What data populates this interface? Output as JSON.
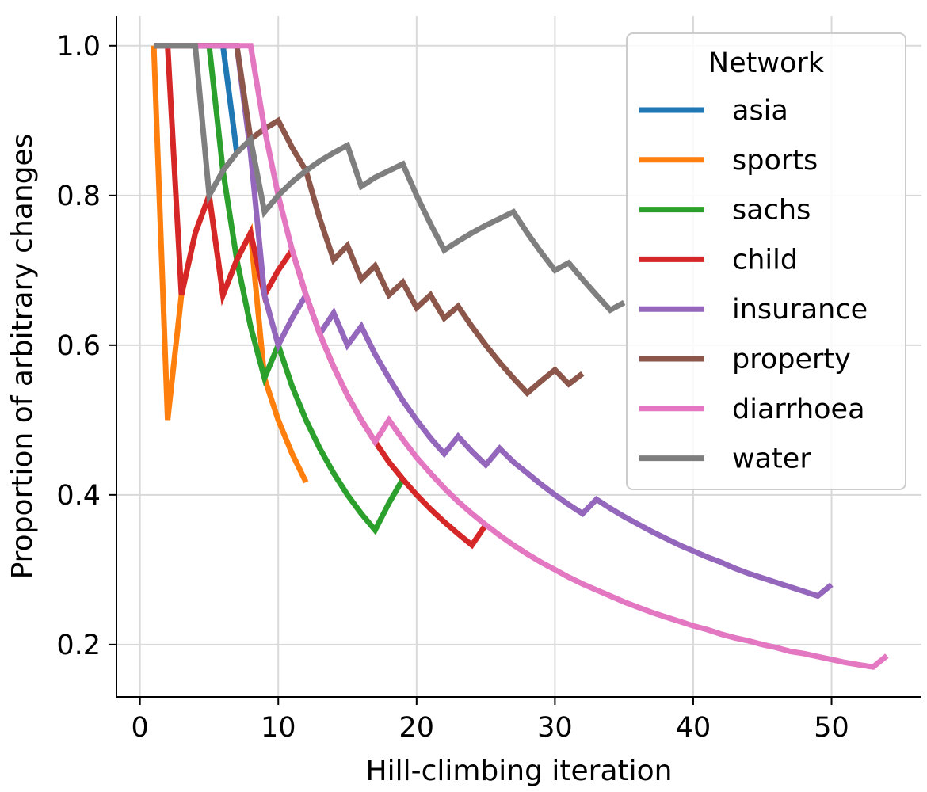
{
  "chart_data": {
    "type": "line",
    "title": "",
    "xlabel": "Hill-climbing iteration",
    "ylabel": "Proportion of arbitrary changes",
    "xlim": [
      -1.7,
      56.5
    ],
    "ylim": [
      0.13,
      1.04
    ],
    "xticks": [
      0,
      10,
      20,
      30,
      40,
      50
    ],
    "yticks": [
      0.2,
      0.4,
      0.6,
      0.8,
      1.0
    ],
    "xtick_labels": [
      "0",
      "10",
      "20",
      "30",
      "40",
      "50"
    ],
    "ytick_labels": [
      "0.2",
      "0.4",
      "0.6",
      "0.8",
      "1.0"
    ],
    "grid": true,
    "legend": {
      "title": "Network",
      "position": "top-right"
    },
    "series": [
      {
        "name": "asia",
        "color": "#1f77b4",
        "x": [
          1,
          2,
          3,
          4,
          5,
          6,
          7
        ],
        "y": [
          1.0,
          1.0,
          1.0,
          1.0,
          1.0,
          1.0,
          0.857
        ]
      },
      {
        "name": "sports",
        "color": "#ff7f0e",
        "x": [
          1,
          2,
          3,
          4,
          5,
          6,
          7,
          8,
          9,
          10,
          11,
          12
        ],
        "y": [
          1.0,
          0.5,
          0.667,
          0.75,
          0.8,
          0.667,
          0.714,
          0.75,
          0.556,
          0.5,
          0.455,
          0.417
        ]
      },
      {
        "name": "sachs",
        "color": "#2ca02c",
        "x": [
          1,
          2,
          3,
          4,
          5,
          6,
          7,
          8,
          9,
          10,
          11,
          12,
          13,
          14,
          15,
          16,
          17,
          18,
          19
        ],
        "y": [
          1.0,
          1.0,
          1.0,
          1.0,
          1.0,
          0.833,
          0.714,
          0.625,
          0.556,
          0.6,
          0.545,
          0.5,
          0.462,
          0.429,
          0.4,
          0.375,
          0.353,
          0.389,
          0.421
        ]
      },
      {
        "name": "child",
        "color": "#d62728",
        "x": [
          1,
          2,
          3,
          4,
          5,
          6,
          7,
          8,
          9,
          10,
          11,
          12,
          13,
          14,
          15,
          16,
          17,
          18,
          19,
          20,
          21,
          22,
          23,
          24,
          25
        ],
        "y": [
          1.0,
          1.0,
          0.667,
          0.75,
          0.8,
          0.667,
          0.714,
          0.75,
          0.667,
          0.7,
          0.727,
          0.667,
          0.615,
          0.571,
          0.533,
          0.5,
          0.471,
          0.444,
          0.421,
          0.4,
          0.381,
          0.364,
          0.348,
          0.333,
          0.36
        ]
      },
      {
        "name": "insurance",
        "color": "#9467bd",
        "x": [
          1,
          2,
          3,
          4,
          5,
          6,
          7,
          8,
          9,
          10,
          11,
          12,
          13,
          14,
          15,
          16,
          17,
          18,
          19,
          20,
          21,
          22,
          23,
          24,
          25,
          26,
          27,
          28,
          29,
          30,
          31,
          32,
          33,
          34,
          35,
          36,
          37,
          38,
          39,
          40,
          41,
          42,
          43,
          44,
          45,
          46,
          47,
          48,
          49,
          50
        ],
        "y": [
          1.0,
          1.0,
          1.0,
          1.0,
          1.0,
          1.0,
          1.0,
          0.857,
          0.667,
          0.6,
          0.636,
          0.667,
          0.615,
          0.643,
          0.6,
          0.625,
          0.588,
          0.556,
          0.526,
          0.5,
          0.476,
          0.455,
          0.478,
          0.458,
          0.44,
          0.462,
          0.444,
          0.429,
          0.414,
          0.4,
          0.387,
          0.375,
          0.394,
          0.382,
          0.371,
          0.361,
          0.351,
          0.342,
          0.333,
          0.325,
          0.317,
          0.31,
          0.302,
          0.295,
          0.289,
          0.283,
          0.277,
          0.271,
          0.265,
          0.28
        ]
      },
      {
        "name": "property",
        "color": "#8c564b",
        "x": [
          1,
          2,
          3,
          4,
          5,
          6,
          7,
          8,
          9,
          10,
          11,
          12,
          13,
          14,
          15,
          16,
          17,
          18,
          19,
          20,
          21,
          22,
          23,
          24,
          25,
          26,
          27,
          28,
          29,
          30,
          31,
          32
        ],
        "y": [
          1.0,
          1.0,
          1.0,
          1.0,
          1.0,
          1.0,
          1.0,
          0.875,
          0.889,
          0.9,
          0.864,
          0.833,
          0.769,
          0.714,
          0.733,
          0.688,
          0.706,
          0.667,
          0.684,
          0.65,
          0.667,
          0.636,
          0.652,
          0.625,
          0.6,
          0.577,
          0.556,
          0.536,
          0.552,
          0.567,
          0.548,
          0.562
        ]
      },
      {
        "name": "diarrhoea",
        "color": "#e377c2",
        "x": [
          1,
          2,
          3,
          4,
          5,
          6,
          7,
          8,
          9,
          10,
          11,
          12,
          13,
          14,
          15,
          16,
          17,
          18,
          19,
          20,
          21,
          22,
          23,
          24,
          25,
          26,
          27,
          28,
          29,
          30,
          31,
          32,
          33,
          34,
          35,
          36,
          37,
          38,
          39,
          40,
          41,
          42,
          43,
          44,
          45,
          46,
          47,
          48,
          49,
          50,
          51,
          52,
          53,
          54
        ],
        "y": [
          1.0,
          1.0,
          1.0,
          1.0,
          1.0,
          1.0,
          1.0,
          1.0,
          0.889,
          0.8,
          0.727,
          0.667,
          0.615,
          0.571,
          0.533,
          0.5,
          0.471,
          0.5,
          0.474,
          0.45,
          0.429,
          0.409,
          0.391,
          0.375,
          0.36,
          0.346,
          0.333,
          0.321,
          0.31,
          0.3,
          0.29,
          0.281,
          0.273,
          0.265,
          0.257,
          0.25,
          0.243,
          0.237,
          0.231,
          0.225,
          0.22,
          0.214,
          0.209,
          0.205,
          0.2,
          0.196,
          0.191,
          0.188,
          0.184,
          0.18,
          0.176,
          0.173,
          0.17,
          0.185
        ]
      },
      {
        "name": "water",
        "color": "#7f7f7f",
        "x": [
          1,
          2,
          3,
          4,
          5,
          6,
          7,
          8,
          9,
          10,
          11,
          12,
          13,
          14,
          15,
          16,
          17,
          18,
          19,
          20,
          21,
          22,
          23,
          24,
          25,
          26,
          27,
          28,
          29,
          30,
          31,
          32,
          33,
          34,
          35
        ],
        "y": [
          1.0,
          1.0,
          1.0,
          1.0,
          0.8,
          0.833,
          0.857,
          0.875,
          0.778,
          0.8,
          0.818,
          0.833,
          0.846,
          0.857,
          0.867,
          0.812,
          0.824,
          0.833,
          0.842,
          0.8,
          0.762,
          0.727,
          0.739,
          0.75,
          0.76,
          0.769,
          0.778,
          0.75,
          0.724,
          0.7,
          0.71,
          0.688,
          0.667,
          0.647,
          0.657
        ]
      }
    ]
  }
}
